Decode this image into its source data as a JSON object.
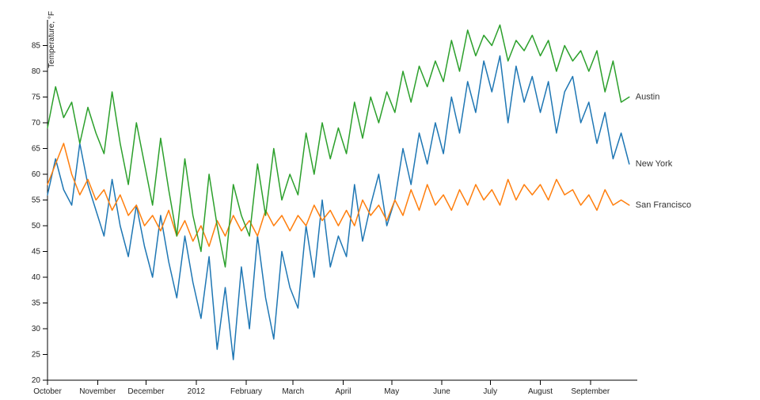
{
  "chart_data": {
    "type": "line",
    "title": "",
    "xlabel": "",
    "ylabel": "Temperature, °F",
    "ylim": [
      20,
      90
    ],
    "y_ticks": [
      20,
      25,
      30,
      35,
      40,
      45,
      50,
      55,
      60,
      65,
      70,
      75,
      80,
      85
    ],
    "x_max_day": 365,
    "sample_interval_days": 5,
    "grid": false,
    "legend_position": "line-end-labels",
    "x_ticks": [
      {
        "day": 0,
        "label": "October"
      },
      {
        "day": 31,
        "label": "November"
      },
      {
        "day": 61,
        "label": "December"
      },
      {
        "day": 92,
        "label": "2012"
      },
      {
        "day": 123,
        "label": "February"
      },
      {
        "day": 152,
        "label": "March"
      },
      {
        "day": 183,
        "label": "April"
      },
      {
        "day": 213,
        "label": "May"
      },
      {
        "day": 244,
        "label": "June"
      },
      {
        "day": 274,
        "label": "July"
      },
      {
        "day": 305,
        "label": "August"
      },
      {
        "day": 336,
        "label": "September"
      }
    ],
    "series": [
      {
        "name": "New York",
        "color": "#1f77b4",
        "values": [
          56,
          63,
          57,
          54,
          66,
          58,
          53,
          48,
          59,
          50,
          44,
          54,
          46,
          40,
          52,
          43,
          36,
          48,
          39,
          32,
          44,
          26,
          38,
          24,
          42,
          30,
          48,
          36,
          28,
          45,
          38,
          34,
          50,
          40,
          55,
          42,
          48,
          44,
          58,
          47,
          54,
          60,
          50,
          55,
          65,
          58,
          68,
          62,
          70,
          64,
          75,
          68,
          78,
          72,
          82,
          76,
          83,
          70,
          81,
          74,
          79,
          72,
          78,
          68,
          76,
          79,
          70,
          74,
          66,
          72,
          63,
          68,
          62
        ]
      },
      {
        "name": "San Francisco",
        "color": "#ff7f0e",
        "values": [
          58,
          62,
          66,
          60,
          56,
          59,
          55,
          57,
          53,
          56,
          52,
          54,
          50,
          52,
          49,
          53,
          48,
          51,
          47,
          50,
          46,
          51,
          48,
          52,
          49,
          51,
          48,
          53,
          50,
          52,
          49,
          52,
          50,
          54,
          51,
          53,
          50,
          53,
          50,
          55,
          52,
          54,
          51,
          55,
          52,
          57,
          53,
          58,
          54,
          56,
          53,
          57,
          54,
          58,
          55,
          57,
          54,
          59,
          55,
          58,
          56,
          58,
          55,
          59,
          56,
          57,
          54,
          56,
          53,
          57,
          54,
          55,
          54
        ]
      },
      {
        "name": "Austin",
        "color": "#2ca02c",
        "values": [
          69,
          77,
          71,
          74,
          66,
          73,
          68,
          64,
          76,
          66,
          58,
          70,
          62,
          54,
          67,
          57,
          48,
          63,
          52,
          45,
          60,
          50,
          42,
          58,
          52,
          48,
          62,
          52,
          65,
          55,
          60,
          56,
          68,
          60,
          70,
          63,
          69,
          64,
          74,
          67,
          75,
          70,
          76,
          72,
          80,
          74,
          81,
          77,
          82,
          78,
          86,
          80,
          88,
          83,
          87,
          85,
          89,
          82,
          86,
          84,
          87,
          83,
          86,
          80,
          85,
          82,
          84,
          80,
          84,
          76,
          82,
          74,
          75
        ]
      }
    ]
  }
}
